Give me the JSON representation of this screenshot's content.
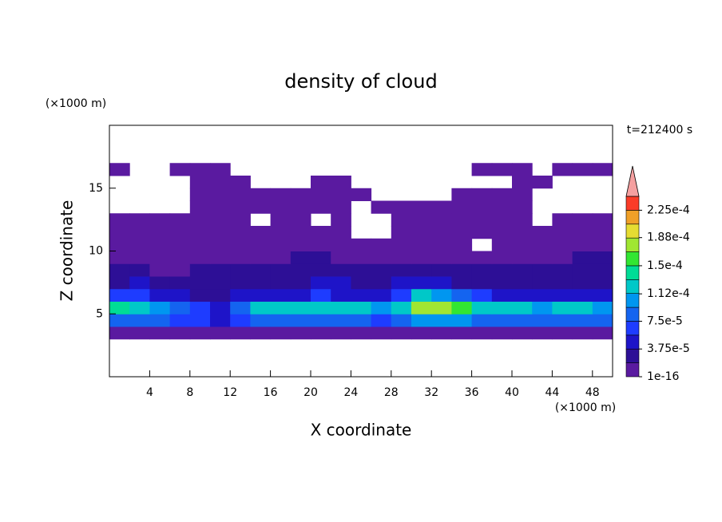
{
  "chart_data": {
    "type": "contour",
    "title": "density of cloud",
    "xlabel": "X coordinate",
    "ylabel": "Z coordinate",
    "xunit": "(×1000 m)",
    "yunit": "(×1000 m)",
    "annotation": "t=212400 s",
    "xlim": [
      0,
      50
    ],
    "ylim": [
      0,
      20
    ],
    "xticks": [
      4,
      8,
      12,
      16,
      20,
      24,
      28,
      32,
      36,
      40,
      44,
      48
    ],
    "yticks": [
      5,
      10,
      15
    ],
    "x": [
      1,
      3,
      5,
      7,
      9,
      11,
      13,
      15,
      17,
      19,
      21,
      23,
      25,
      27,
      29,
      31,
      33,
      35,
      37,
      39,
      41,
      43,
      45,
      47,
      49
    ],
    "z": [
      3.5,
      4.5,
      5.5,
      6.5,
      7.5,
      8.5,
      9.5,
      10.5,
      11.5,
      12.5,
      13.5,
      14.5,
      15.5,
      16.5
    ],
    "values": [
      [
        1e-05,
        1e-05,
        1e-05,
        1e-05,
        1e-05,
        1e-05,
        1e-05,
        1e-05,
        1e-05,
        1e-05,
        1e-05,
        1e-05,
        1e-05,
        1e-05,
        1e-05,
        1e-05,
        1e-05,
        1e-05,
        1e-05,
        1e-05,
        1e-05,
        1e-05,
        1e-05,
        1e-05,
        1e-05
      ],
      [
        9e-05,
        9e-05,
        8e-05,
        7e-05,
        6e-05,
        5e-05,
        7e-05,
        8e-05,
        8e-05,
        8e-05,
        9e-05,
        8e-05,
        8e-05,
        7e-05,
        8e-05,
        0.0001,
        0.00011,
        0.0001,
        9e-05,
        8e-05,
        9e-05,
        8e-05,
        8e-05,
        9e-05,
        9e-05
      ],
      [
        0.00014,
        0.00013,
        0.00011,
        9e-05,
        6e-05,
        4e-05,
        9e-05,
        0.00012,
        0.00012,
        0.00012,
        0.00013,
        0.00012,
        0.00012,
        0.00011,
        0.00012,
        0.00017,
        0.00018,
        0.00016,
        0.00013,
        0.00012,
        0.00012,
        0.00011,
        0.00012,
        0.00012,
        0.00011
      ],
      [
        6e-05,
        7e-05,
        5e-05,
        4e-05,
        3e-05,
        3e-05,
        4e-05,
        5e-05,
        5e-05,
        5e-05,
        6e-05,
        5e-05,
        5e-05,
        5e-05,
        6e-05,
        0.00012,
        0.00011,
        8e-05,
        6e-05,
        5e-05,
        5e-05,
        4e-05,
        4e-05,
        4e-05,
        4e-05
      ],
      [
        3e-05,
        4e-05,
        3e-05,
        3e-05,
        2.5e-05,
        2.5e-05,
        3e-05,
        3e-05,
        3e-05,
        3e-05,
        4e-05,
        4e-05,
        3e-05,
        3e-05,
        4e-05,
        5e-05,
        4e-05,
        3e-05,
        3e-05,
        3e-05,
        3e-05,
        3e-05,
        3e-05,
        3e-05,
        3e-05
      ],
      [
        2.5e-05,
        2e-05,
        1.5e-05,
        1.5e-05,
        2e-05,
        2.5e-05,
        2.5e-05,
        2e-05,
        2e-05,
        2.5e-05,
        3e-05,
        3e-05,
        2.5e-05,
        2.5e-05,
        2.5e-05,
        2.5e-05,
        2e-05,
        2e-05,
        2e-05,
        2.5e-05,
        2e-05,
        2e-05,
        2.5e-05,
        2.5e-05,
        2e-05
      ],
      [
        1.5e-05,
        1e-05,
        1e-05,
        1e-05,
        1e-05,
        1.5e-05,
        1e-05,
        1e-05,
        1.5e-05,
        2e-05,
        2e-05,
        1.5e-05,
        1e-05,
        1e-05,
        1e-05,
        1e-05,
        1e-05,
        1e-05,
        1e-05,
        1.5e-05,
        1.5e-05,
        1e-05,
        1.5e-05,
        2.5e-05,
        2e-05
      ],
      [
        1e-05,
        1e-05,
        1e-05,
        1e-05,
        1e-05,
        1e-05,
        1e-05,
        1e-05,
        1e-05,
        1e-05,
        1e-05,
        1e-05,
        1e-05,
        1e-05,
        1e-05,
        1e-05,
        1e-05,
        1e-05,
        null,
        1e-05,
        1e-05,
        1e-05,
        1e-05,
        1e-05,
        1e-05
      ],
      [
        1e-05,
        1e-05,
        1e-05,
        1e-05,
        1e-05,
        1e-05,
        1e-05,
        1e-05,
        1e-05,
        1e-05,
        1e-05,
        1e-05,
        null,
        null,
        1e-05,
        1e-05,
        1e-05,
        1e-05,
        1e-05,
        1e-05,
        1e-05,
        1e-05,
        1e-05,
        1e-05,
        1e-05
      ],
      [
        1e-05,
        1e-05,
        1e-05,
        1e-05,
        1e-05,
        1e-05,
        1e-05,
        null,
        1e-05,
        1e-05,
        null,
        1e-05,
        null,
        null,
        1e-05,
        1e-05,
        1e-05,
        1e-05,
        1e-05,
        1e-05,
        1e-05,
        null,
        1e-05,
        1e-05,
        1e-05
      ],
      [
        null,
        null,
        null,
        null,
        1e-05,
        1e-05,
        1e-05,
        1e-05,
        1e-05,
        1e-05,
        1e-05,
        1e-05,
        null,
        1e-05,
        1e-05,
        1e-05,
        1e-05,
        1e-05,
        1e-05,
        1e-05,
        1e-05,
        null,
        null,
        null,
        null
      ],
      [
        null,
        null,
        null,
        null,
        1e-05,
        1e-05,
        1e-05,
        1e-05,
        1e-05,
        1e-05,
        1e-05,
        1e-05,
        1e-05,
        null,
        null,
        null,
        null,
        1e-05,
        1e-05,
        1e-05,
        1e-05,
        null,
        null,
        null,
        null
      ],
      [
        null,
        null,
        null,
        null,
        1e-05,
        1e-05,
        1e-05,
        null,
        null,
        null,
        1e-05,
        1e-05,
        null,
        null,
        null,
        null,
        null,
        null,
        null,
        null,
        1e-05,
        1e-05,
        null,
        null,
        null
      ],
      [
        1e-05,
        null,
        null,
        1e-05,
        1e-05,
        1e-05,
        null,
        null,
        null,
        null,
        null,
        null,
        null,
        null,
        null,
        null,
        null,
        null,
        1e-05,
        1e-05,
        1e-05,
        null,
        1e-05,
        1e-05,
        1e-05
      ]
    ],
    "clim": [
      1e-16,
      0.00024375
    ],
    "colors": [
      "#5a1aa0",
      "#2d0f96",
      "#1e14c8",
      "#1e3cff",
      "#1464f0",
      "#0096f0",
      "#00c8c8",
      "#00dc96",
      "#32e632",
      "#a0e632",
      "#e6dc32",
      "#f0a028",
      "#fa3c28"
    ],
    "overflow_color": "#f5a0a0",
    "cticks": [
      {
        "value": 1e-16,
        "label": "1e-16"
      },
      {
        "value": 3.75e-05,
        "label": "3.75e-5"
      },
      {
        "value": 7.5e-05,
        "label": "7.5e-5"
      },
      {
        "value": 0.000112,
        "label": "1.12e-4"
      },
      {
        "value": 0.00015,
        "label": "1.5e-4"
      },
      {
        "value": 0.000188,
        "label": "1.88e-4"
      },
      {
        "value": 0.000225,
        "label": "2.25e-4"
      }
    ]
  }
}
